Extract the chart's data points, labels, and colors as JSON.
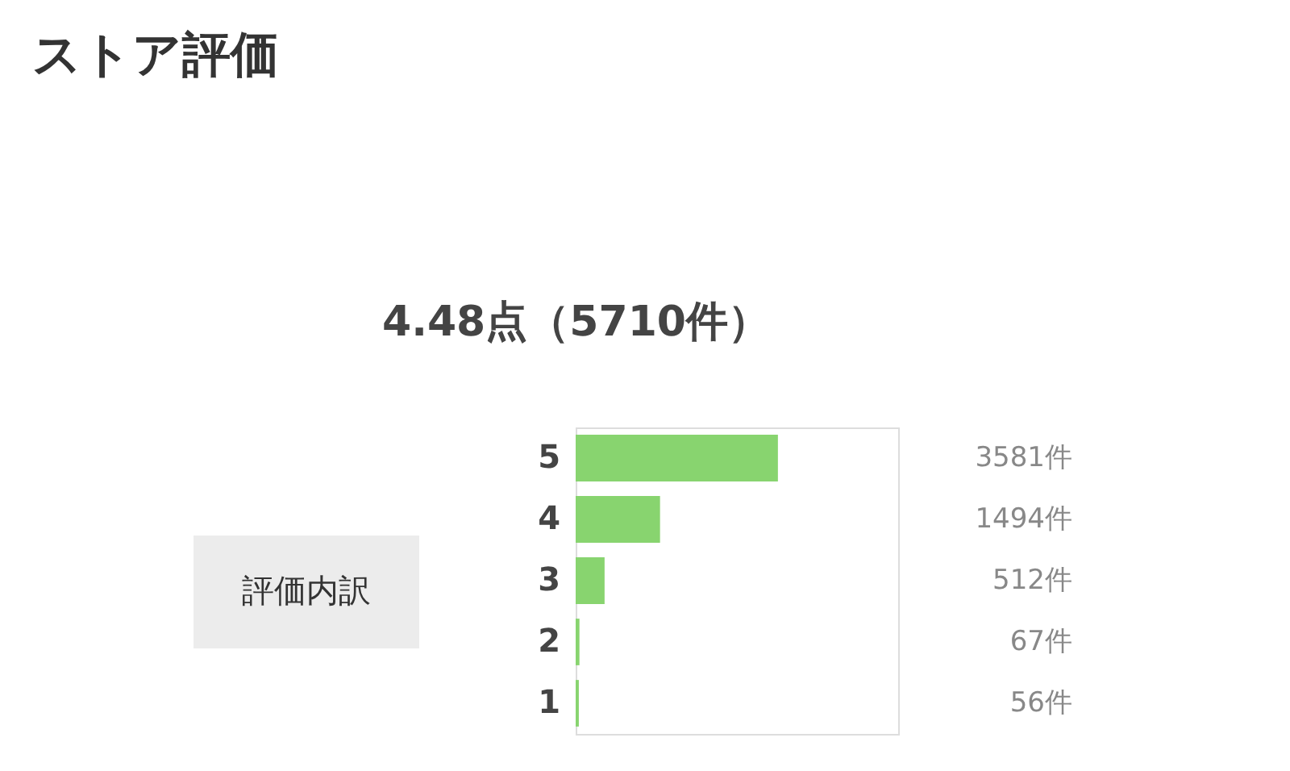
{
  "chart_data": {
    "type": "bar",
    "orientation": "horizontal",
    "title": "ストア評価",
    "categories": [
      "5",
      "4",
      "3",
      "2",
      "1"
    ],
    "values": [
      3581,
      1494,
      512,
      67,
      56
    ],
    "value_labels": [
      "3581件",
      "1494件",
      "512件",
      "67件",
      "56件"
    ],
    "color": "#88d46f",
    "xlim": [
      0,
      5710
    ],
    "annotations": [
      "4.48点（5710件）",
      "評価内訳"
    ],
    "tick_labels": "y",
    "grid": false
  }
}
